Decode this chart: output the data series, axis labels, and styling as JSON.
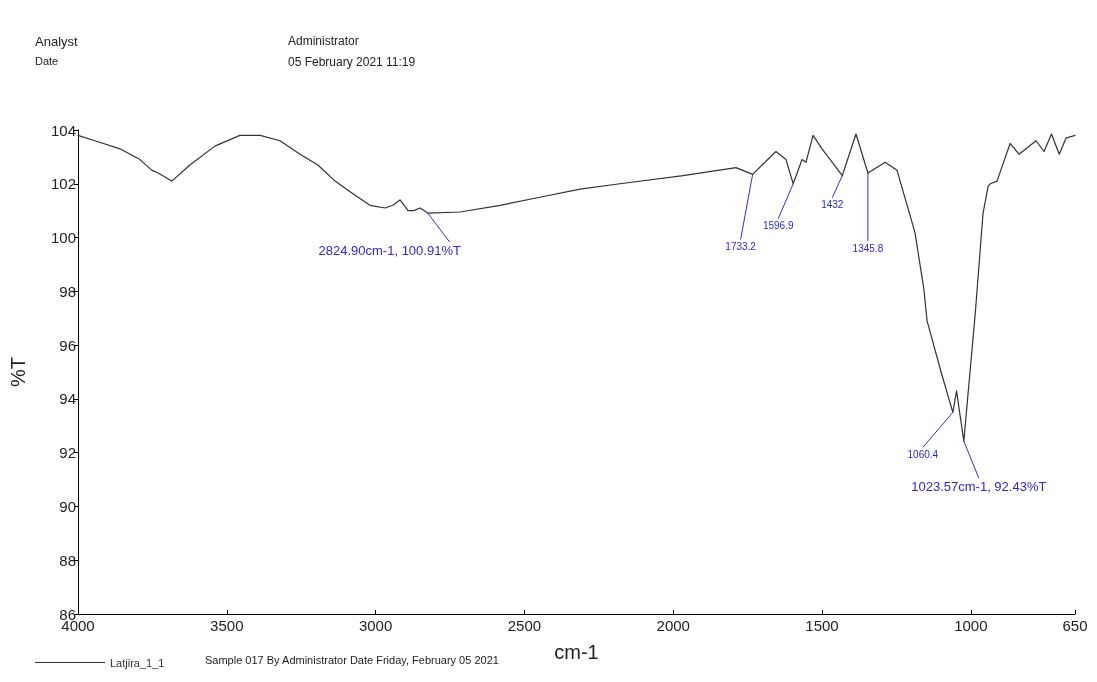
{
  "chart_data": {
    "type": "line",
    "xlabel": "cm-1",
    "ylabel": "%T",
    "xlim": [
      4000,
      650
    ],
    "xticks": [
      4000,
      3500,
      3000,
      2500,
      2000,
      1500,
      1000,
      650
    ],
    "ylim": [
      86,
      104
    ],
    "yticks": [
      86,
      88,
      90,
      92,
      94,
      96,
      98,
      100,
      102,
      104
    ],
    "grid": false,
    "legend": "bottom left",
    "marker": "none",
    "line_style": "solid",
    "series": [
      {
        "name": "Latjira_1_1",
        "color": "#333333",
        "x": [
          4000,
          3943,
          3859,
          3792,
          3751,
          3731,
          3685,
          3624,
          3540,
          3456,
          3388,
          3321,
          3254,
          3194,
          3136,
          3086,
          3019,
          2968,
          2942,
          2918,
          2891,
          2871,
          2851,
          2824.9,
          2716,
          2582,
          2448,
          2313,
          2179,
          1967,
          1789,
          1733.2,
          1655,
          1621,
          1596.9,
          1567,
          1554,
          1530,
          1500,
          1432,
          1386,
          1345.8,
          1288,
          1248,
          1188,
          1158,
          1147,
          1100,
          1060.4,
          1048,
          1023.57,
          985,
          959,
          942,
          935,
          912,
          868,
          838,
          781,
          754,
          729,
          703,
          680,
          650
        ],
        "values": [
          103.8,
          103.6,
          103.3,
          102.9,
          102.5,
          102.4,
          102.1,
          102.7,
          103.4,
          103.8,
          103.8,
          103.6,
          103.1,
          102.7,
          102.1,
          101.7,
          101.2,
          101.1,
          101.2,
          101.4,
          101.0,
          101.0,
          101.1,
          100.91,
          100.95,
          101.2,
          101.5,
          101.8,
          102.0,
          102.3,
          102.6,
          102.35,
          103.2,
          102.9,
          102.0,
          102.9,
          102.8,
          103.8,
          103.3,
          102.3,
          103.85,
          102.4,
          102.8,
          102.5,
          100.2,
          98.1,
          96.9,
          95.0,
          93.5,
          94.3,
          92.43,
          97.2,
          100.9,
          101.9,
          102.0,
          102.1,
          103.5,
          103.1,
          103.6,
          103.2,
          103.85,
          103.1,
          103.7,
          103.8
        ]
      }
    ],
    "annotations": [
      "Analyst",
      "Date",
      "Administrator",
      "05 February 2021 11:19",
      "Sample 017 By Administrator Date Friday, February 05 2021",
      {
        "text": "2824.90cm-1, 100.91%T",
        "x": 2824.9,
        "y": 100.91
      },
      {
        "text": "1733.2",
        "x": 1733.2,
        "y": 102.35
      },
      {
        "text": "1596.9",
        "x": 1596.9,
        "y": 102.0
      },
      {
        "text": "1432",
        "x": 1432,
        "y": 102.3
      },
      {
        "text": "1345.8",
        "x": 1345.8,
        "y": 102.4
      },
      {
        "text": "1060.4",
        "x": 1060.4,
        "y": 93.5
      },
      {
        "text": "1023.57cm-1, 92.43%T",
        "x": 1023.57,
        "y": 92.43
      }
    ]
  }
}
